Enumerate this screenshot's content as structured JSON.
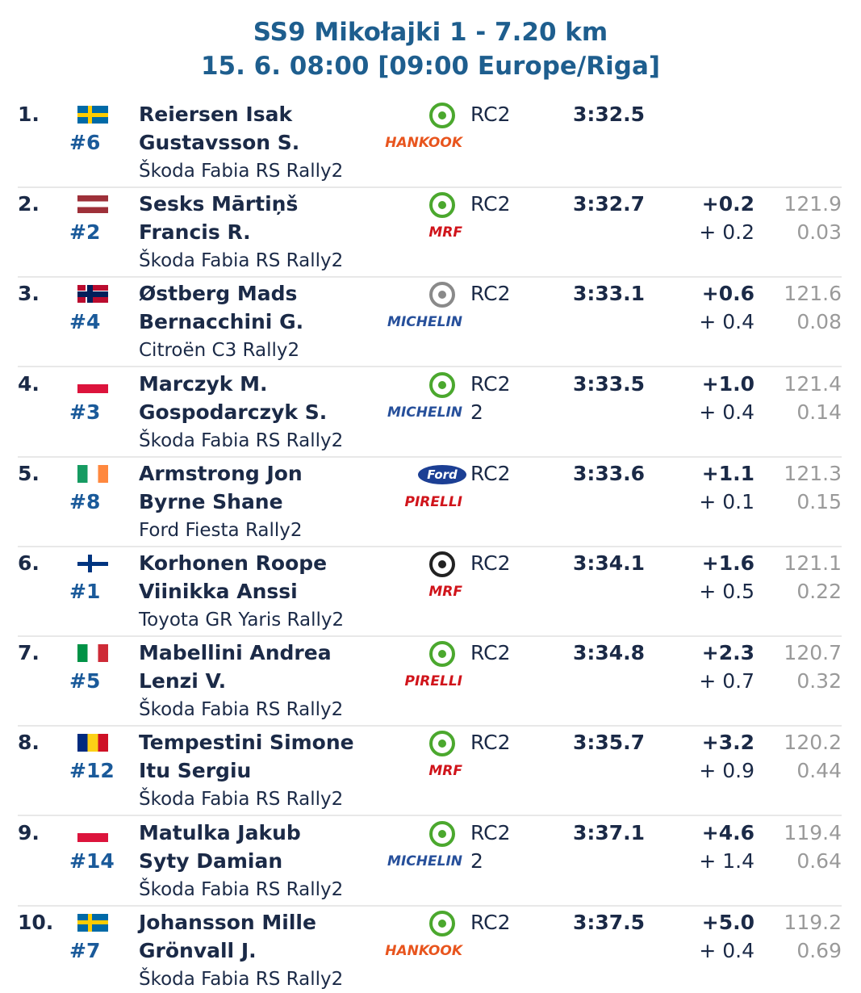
{
  "header": {
    "title": "SS9 Mikołajki 1 - 7.20 km",
    "subtitle": "15. 6. 08:00 [09:00 Europe/Riga]"
  },
  "rows": [
    {
      "pos": "1.",
      "flag": {
        "style": "cross",
        "colors": [
          "#006aa7",
          "#fecc00"
        ]
      },
      "number": "#6",
      "driver": "Reiersen Isak",
      "codriver": "Gustavsson S.",
      "car": "Škoda Fabia RS Rally2",
      "logo_color": "#4ba82e",
      "tyre": "HANKOOK",
      "tyre_color": "#e8551e",
      "class": "RC2",
      "time": "3:32.5"
    },
    {
      "pos": "2.",
      "flag": {
        "style": "horizontal",
        "colors": [
          "#9e3039",
          "#ffffff",
          "#9e3039"
        ]
      },
      "number": "#2",
      "driver": "Sesks Mārtiņš",
      "codriver": "Francis R.",
      "car": "Škoda Fabia RS Rally2",
      "logo_color": "#4ba82e",
      "tyre": "MRF",
      "tyre_color": "#d0141b",
      "class": "RC2",
      "time": "3:32.7",
      "diff": "+0.2",
      "diff_prev": "+ 0.2",
      "speed": "121.9",
      "per_km": "0.03"
    },
    {
      "pos": "3.",
      "flag": {
        "style": "cross",
        "colors": [
          "#ba0c2f",
          "#00205b"
        ]
      },
      "number": "#4",
      "driver": "Østberg Mads",
      "codriver": "Bernacchini G.",
      "car": "Citroën C3 Rally2",
      "logo_color": "#8a8a8a",
      "tyre": "MICHELIN",
      "tyre_color": "#27509b",
      "class": "RC2",
      "time": "3:33.1",
      "diff": "+0.6",
      "diff_prev": "+ 0.4",
      "speed": "121.6",
      "per_km": "0.08"
    },
    {
      "pos": "4.",
      "flag": {
        "style": "horizontal",
        "colors": [
          "#ffffff",
          "#dc143c"
        ]
      },
      "number": "#3",
      "driver": "Marczyk M.",
      "codriver": "Gospodarczyk S.",
      "car": "Škoda Fabia RS Rally2",
      "logo_color": "#4ba82e",
      "tyre": "MICHELIN",
      "tyre_color": "#27509b",
      "class": "RC2",
      "subclass": "2",
      "time": "3:33.5",
      "diff": "+1.0",
      "diff_prev": "+ 0.4",
      "speed": "121.4",
      "per_km": "0.14"
    },
    {
      "pos": "5.",
      "flag": {
        "style": "vertical",
        "colors": [
          "#169b62",
          "#ffffff",
          "#ff883e"
        ]
      },
      "number": "#8",
      "driver": "Armstrong Jon",
      "codriver": "Byrne Shane",
      "car": "Ford Fiesta Rally2",
      "logo_color": "#1c3f94",
      "logo_text": "Ford",
      "tyre": "PIRELLI",
      "tyre_color": "#d0141b",
      "class": "RC2",
      "time": "3:33.6",
      "diff": "+1.1",
      "diff_prev": "+ 0.1",
      "speed": "121.3",
      "per_km": "0.15"
    },
    {
      "pos": "6.",
      "flag": {
        "style": "cross",
        "colors": [
          "#ffffff",
          "#003580"
        ]
      },
      "number": "#1",
      "driver": "Korhonen Roope",
      "codriver": "Viinikka Anssi",
      "car": "Toyota GR Yaris Rally2",
      "logo_color": "#222222",
      "tyre": "MRF",
      "tyre_color": "#d0141b",
      "class": "RC2",
      "time": "3:34.1",
      "diff": "+1.6",
      "diff_prev": "+ 0.5",
      "speed": "121.1",
      "per_km": "0.22"
    },
    {
      "pos": "7.",
      "flag": {
        "style": "vertical",
        "colors": [
          "#009246",
          "#ffffff",
          "#ce2b37"
        ]
      },
      "number": "#5",
      "driver": "Mabellini Andrea",
      "codriver": "Lenzi V.",
      "car": "Škoda Fabia RS Rally2",
      "logo_color": "#4ba82e",
      "tyre": "PIRELLI",
      "tyre_color": "#d0141b",
      "class": "RC2",
      "time": "3:34.8",
      "diff": "+2.3",
      "diff_prev": "+ 0.7",
      "speed": "120.7",
      "per_km": "0.32"
    },
    {
      "pos": "8.",
      "flag": {
        "style": "vertical",
        "colors": [
          "#002b7f",
          "#fcd116",
          "#ce1126"
        ]
      },
      "number": "#12",
      "driver": "Tempestini Simone",
      "codriver": "Itu Sergiu",
      "car": "Škoda Fabia RS Rally2",
      "logo_color": "#4ba82e",
      "tyre": "MRF",
      "tyre_color": "#d0141b",
      "class": "RC2",
      "time": "3:35.7",
      "diff": "+3.2",
      "diff_prev": "+ 0.9",
      "speed": "120.2",
      "per_km": "0.44"
    },
    {
      "pos": "9.",
      "flag": {
        "style": "horizontal",
        "colors": [
          "#ffffff",
          "#dc143c"
        ]
      },
      "number": "#14",
      "driver": "Matulka Jakub",
      "codriver": "Syty Damian",
      "car": "Škoda Fabia RS Rally2",
      "logo_color": "#4ba82e",
      "tyre": "MICHELIN",
      "tyre_color": "#27509b",
      "class": "RC2",
      "subclass": "2",
      "time": "3:37.1",
      "diff": "+4.6",
      "diff_prev": "+ 1.4",
      "speed": "119.4",
      "per_km": "0.64"
    },
    {
      "pos": "10.",
      "flag": {
        "style": "cross",
        "colors": [
          "#006aa7",
          "#fecc00"
        ]
      },
      "number": "#7",
      "driver": "Johansson Mille",
      "codriver": "Grönvall J.",
      "car": "Škoda Fabia RS Rally2",
      "logo_color": "#4ba82e",
      "tyre": "HANKOOK",
      "tyre_color": "#e8551e",
      "class": "RC2",
      "time": "3:37.5",
      "diff": "+5.0",
      "diff_prev": "+ 0.4",
      "speed": "119.2",
      "per_km": "0.69"
    }
  ]
}
